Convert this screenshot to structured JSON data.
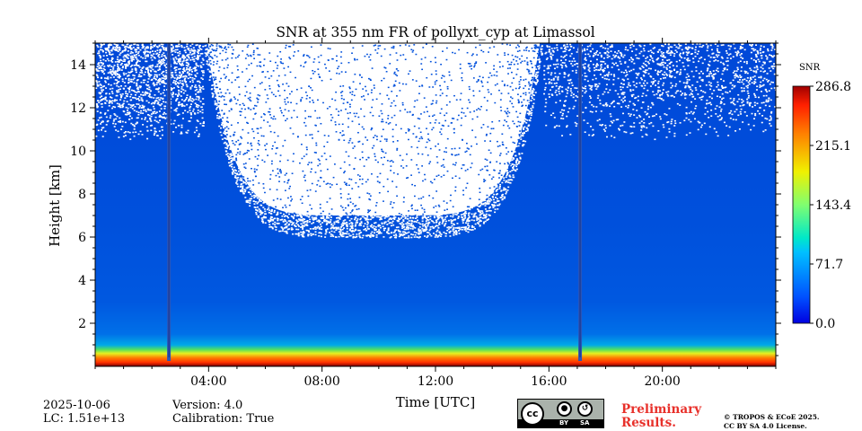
{
  "chart_data": {
    "type": "heatmap",
    "title": "SNR at 355 nm FR of pollyxt_cyp at Limassol",
    "xlabel": "Time [UTC]",
    "ylabel": "Height [km]",
    "xlim": [
      0,
      24
    ],
    "ylim": [
      0,
      15
    ],
    "x_ticks": [
      4,
      8,
      12,
      16,
      20
    ],
    "x_tick_labels": [
      "04:00",
      "08:00",
      "12:00",
      "16:00",
      "20:00"
    ],
    "y_ticks": [
      2,
      4,
      6,
      8,
      10,
      12,
      14
    ],
    "y_tick_labels": [
      "2",
      "4",
      "6",
      "8",
      "10",
      "12",
      "14"
    ],
    "colorbar": {
      "label": "SNR",
      "range": [
        0.0,
        286.8
      ],
      "ticks": [
        0.0,
        71.7,
        143.4,
        215.1,
        286.8
      ],
      "tick_labels": [
        "0.0",
        "71.7",
        "143.4",
        "215.1",
        "286.8"
      ],
      "colormap": "jet"
    },
    "features": {
      "near_surface_high_snr_layer_km": [
        0,
        1
      ],
      "daytime_noise_region_hours": [
        3.8,
        15.8
      ],
      "daytime_noise_base_km": 6,
      "vertical_gaps_hours": [
        2.6,
        17.1
      ]
    }
  },
  "footer": {
    "date": "2025-10-06",
    "lc": "LC: 1.51e+13",
    "version": "Version: 4.0",
    "calibration": "Calibration: True",
    "preliminary_line1": "Preliminary",
    "preliminary_line2": "Results.",
    "copyright_line1": "© TROPOS & ECoE 2025.",
    "copyright_line2": "CC BY SA 4.0 License.",
    "license_badge": {
      "cc": "cc",
      "by": "BY",
      "sa": "SA"
    }
  }
}
